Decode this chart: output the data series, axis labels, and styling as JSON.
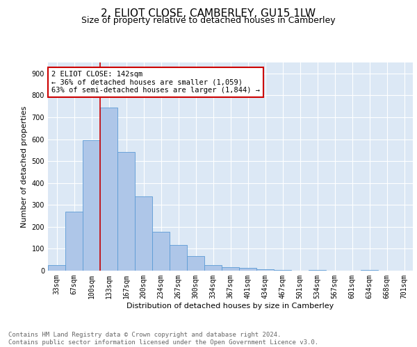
{
  "title": "2, ELIOT CLOSE, CAMBERLEY, GU15 1LW",
  "subtitle": "Size of property relative to detached houses in Camberley",
  "xlabel": "Distribution of detached houses by size in Camberley",
  "ylabel": "Number of detached properties",
  "categories": [
    "33sqm",
    "67sqm",
    "100sqm",
    "133sqm",
    "167sqm",
    "200sqm",
    "234sqm",
    "267sqm",
    "300sqm",
    "334sqm",
    "367sqm",
    "401sqm",
    "434sqm",
    "467sqm",
    "501sqm",
    "534sqm",
    "567sqm",
    "601sqm",
    "634sqm",
    "668sqm",
    "701sqm"
  ],
  "values": [
    25,
    270,
    595,
    745,
    540,
    340,
    178,
    118,
    68,
    25,
    15,
    13,
    7,
    4,
    0,
    4,
    0,
    0,
    3,
    0,
    0
  ],
  "bar_color": "#aec6e8",
  "bar_edge_color": "#5b9bd5",
  "background_color": "#dce8f5",
  "grid_color": "#ffffff",
  "vline_x_index": 3,
  "vline_color": "#cc0000",
  "annotation_text": "2 ELIOT CLOSE: 142sqm\n← 36% of detached houses are smaller (1,059)\n63% of semi-detached houses are larger (1,844) →",
  "annotation_box_color": "#ffffff",
  "annotation_box_edge_color": "#cc0000",
  "ylim": [
    0,
    950
  ],
  "yticks": [
    0,
    100,
    200,
    300,
    400,
    500,
    600,
    700,
    800,
    900
  ],
  "footer_line1": "Contains HM Land Registry data © Crown copyright and database right 2024.",
  "footer_line2": "Contains public sector information licensed under the Open Government Licence v3.0.",
  "title_fontsize": 11,
  "subtitle_fontsize": 9,
  "axis_label_fontsize": 8,
  "tick_fontsize": 7,
  "annotation_fontsize": 7.5,
  "footer_fontsize": 6.5
}
